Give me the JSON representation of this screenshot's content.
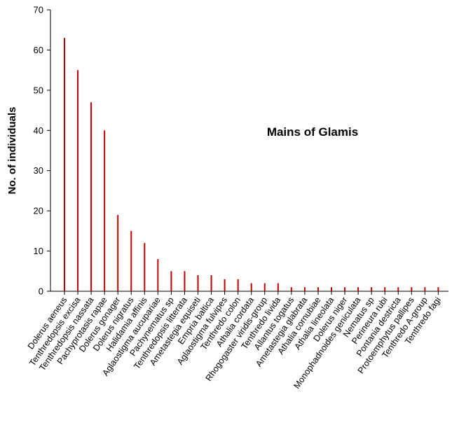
{
  "chart_data": {
    "type": "bar",
    "title": "Mains of Glamis",
    "xlabel": "",
    "ylabel": "No. of individuals",
    "ylim": [
      0,
      70
    ],
    "yticks": [
      "0",
      "10",
      "20",
      "30",
      "40",
      "50",
      "60",
      "70"
    ],
    "grid": false,
    "bar_color": "#c00000",
    "categories": [
      "Dolerus aeneus",
      "Tenthredopsis excisa",
      "Tenthredopsis nassata",
      "Pachyprotasis rapae",
      "Dolerus gonager",
      "Dolerus nigratus",
      "Halidamia affinis",
      "Aglaostigma aucupariae",
      "Pachynematus sp",
      "Tenthredopsis litterata",
      "Ametastegia equiseti",
      "Empria baltica",
      "Aglaostigma fulvipes",
      "Tenthredo colon",
      "Athalia cordata",
      "Rhogogaster viridis-group",
      "Tenthredo livida",
      "Allantus togatus",
      "Ametastegia glabrata",
      "Athalia cornubiae",
      "Athalia lineolata",
      "Dolerus niger",
      "Monophadnoides geniculata",
      "Nematus sp",
      "Perineura rubi",
      "Pontania destricta",
      "Protoemphytus pallipes",
      "Tenthredo A-group",
      "Tenthredo fagi"
    ],
    "values": [
      63,
      55,
      47,
      40,
      19,
      15,
      12,
      8,
      5,
      5,
      4,
      4,
      3,
      3,
      2,
      2,
      2,
      1,
      1,
      1,
      1,
      1,
      1,
      1,
      1,
      1,
      1,
      1,
      1
    ]
  }
}
